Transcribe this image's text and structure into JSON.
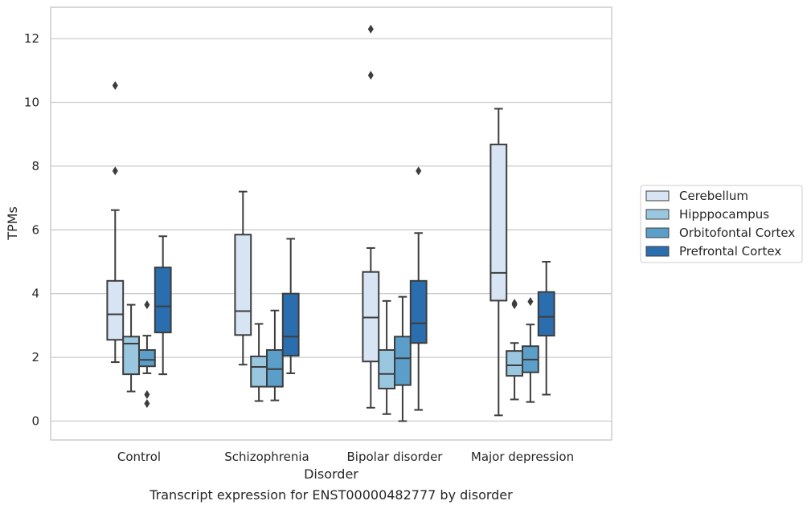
{
  "chart_data": {
    "type": "box",
    "caption": "Transcript expression for ENST00000482777 by disorder",
    "xlabel": "Disorder",
    "ylabel": "TPMs",
    "ylim": [
      -0.6,
      12.9
    ],
    "yticks": [
      0,
      2,
      4,
      6,
      8,
      10,
      12
    ],
    "grid": true,
    "legend_position": "right",
    "categories": [
      "Control",
      "Schizophrenia",
      "Bipolar disorder",
      "Major depression"
    ],
    "series": [
      {
        "name": "Cerebellum",
        "color": "#d6e4f3",
        "boxes": [
          {
            "whislo": 1.85,
            "q1": 2.55,
            "med": 3.35,
            "q3": 4.4,
            "whishi": 6.62,
            "fliers": [
              7.85,
              10.53
            ]
          },
          {
            "whislo": 1.77,
            "q1": 2.7,
            "med": 3.45,
            "q3": 5.85,
            "whishi": 7.2,
            "fliers": []
          },
          {
            "whislo": 0.42,
            "q1": 1.87,
            "med": 3.25,
            "q3": 4.68,
            "whishi": 5.43,
            "fliers": [
              10.85,
              12.3
            ]
          },
          {
            "whislo": 0.18,
            "q1": 3.78,
            "med": 4.65,
            "q3": 8.68,
            "whishi": 9.8,
            "fliers": []
          }
        ]
      },
      {
        "name": "Hipppocampus",
        "color": "#9ac7e0",
        "boxes": [
          {
            "whislo": 0.93,
            "q1": 1.47,
            "med": 2.43,
            "q3": 2.65,
            "whishi": 3.65,
            "fliers": []
          },
          {
            "whislo": 0.63,
            "q1": 1.08,
            "med": 1.7,
            "q3": 2.03,
            "whishi": 3.05,
            "fliers": []
          },
          {
            "whislo": 0.22,
            "q1": 1.02,
            "med": 1.48,
            "q3": 2.23,
            "whishi": 3.77,
            "fliers": []
          },
          {
            "whislo": 0.68,
            "q1": 1.42,
            "med": 1.75,
            "q3": 2.2,
            "whishi": 2.45,
            "fliers": [
              3.65,
              3.7
            ]
          }
        ]
      },
      {
        "name": "Orbitofontal Cortex",
        "color": "#5a9ec9",
        "boxes": [
          {
            "whislo": 1.5,
            "q1": 1.72,
            "med": 1.92,
            "q3": 2.23,
            "whishi": 2.68,
            "fliers": [
              0.55,
              0.83,
              3.65
            ]
          },
          {
            "whislo": 0.65,
            "q1": 1.08,
            "med": 1.63,
            "q3": 2.23,
            "whishi": 3.47,
            "fliers": []
          },
          {
            "whislo": 0.0,
            "q1": 1.13,
            "med": 1.97,
            "q3": 2.65,
            "whishi": 3.9,
            "fliers": []
          },
          {
            "whislo": 0.6,
            "q1": 1.53,
            "med": 1.93,
            "q3": 2.35,
            "whishi": 3.03,
            "fliers": [
              3.75
            ]
          }
        ]
      },
      {
        "name": "Prefrontal Cortex",
        "color": "#2b6eaf",
        "boxes": [
          {
            "whislo": 1.47,
            "q1": 2.78,
            "med": 3.6,
            "q3": 4.82,
            "whishi": 5.8,
            "fliers": []
          },
          {
            "whislo": 1.5,
            "q1": 2.05,
            "med": 2.65,
            "q3": 4.0,
            "whishi": 5.72,
            "fliers": []
          },
          {
            "whislo": 0.35,
            "q1": 2.45,
            "med": 3.07,
            "q3": 4.4,
            "whishi": 5.9,
            "fliers": [
              7.85
            ]
          },
          {
            "whislo": 0.83,
            "q1": 2.68,
            "med": 3.27,
            "q3": 4.05,
            "whishi": 5.0,
            "fliers": []
          }
        ]
      }
    ]
  }
}
